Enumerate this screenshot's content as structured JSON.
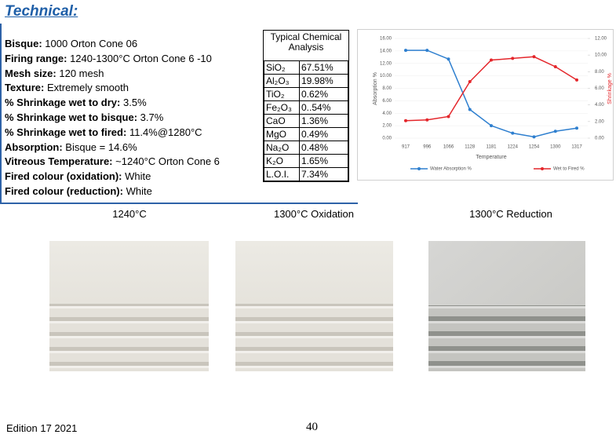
{
  "title": "Technical:",
  "properties": [
    {
      "label": "Bisque:",
      "value": "1000  Orton Cone 06"
    },
    {
      "label": "Firing range:",
      "value": "1240-1300°C Orton Cone 6 -10"
    },
    {
      "label": "Mesh size:",
      "value": "120 mesh"
    },
    {
      "label": "Texture:",
      "value": "Extremely smooth"
    },
    {
      "label": "% Shrinkage wet to dry:",
      "value": "3.5%"
    },
    {
      "label": "% Shrinkage wet to bisque:",
      "value": "3.7%"
    },
    {
      "label": "% Shrinkage wet to fired:",
      "value": "11.4%@1280°C"
    },
    {
      "label": "Absorption:",
      "value": "Bisque = 14.6%"
    },
    {
      "label": "Vitreous Temperature:",
      "value": "~1240°C Orton Cone 6"
    },
    {
      "label": "Fired colour (oxidation):",
      "value": "White"
    },
    {
      "label": "Fired colour (reduction):",
      "value": "White"
    }
  ],
  "table": {
    "header": "Typical Chemical Analysis",
    "rows": [
      [
        "SiO₂",
        "67.51%"
      ],
      [
        "Al₂O₃",
        "19.98%"
      ],
      [
        "TiO₂",
        "0.62%"
      ],
      [
        "Fe₂O₃",
        "0..54%"
      ],
      [
        "CaO",
        "1.36%"
      ],
      [
        "MgO",
        "0.49%"
      ],
      [
        "Na₂O",
        "0.48%"
      ],
      [
        "K₂O",
        "1.65%"
      ],
      [
        "L.O.I.",
        "7.34%"
      ]
    ]
  },
  "chart_data": {
    "type": "line",
    "x_label": "Temperature",
    "y_label": "Absorption %",
    "y2_label": "Shrinkage %",
    "categories": [
      "917",
      "996",
      "1066",
      "1128",
      "1181",
      "1224",
      "1254",
      "1300",
      "1317"
    ],
    "series": [
      {
        "name": "Water Absorption %",
        "color": "#2e7fcf",
        "values": [
          14.1,
          14.1,
          12.7,
          4.6,
          2.0,
          0.8,
          0.2,
          1.1,
          1.6
        ]
      },
      {
        "name": "Wet to Fired %",
        "color": "#e4262b",
        "axis": "y2",
        "values": [
          2.1,
          2.2,
          2.6,
          6.8,
          9.4,
          9.6,
          9.8,
          8.6,
          7.0
        ]
      }
    ],
    "ylim": [
      0,
      16
    ],
    "yticks": [
      {
        "value": 0,
        "label": "0.00"
      },
      {
        "value": 2,
        "label": "2.00"
      },
      {
        "value": 4,
        "label": "4.00"
      },
      {
        "value": 6,
        "label": "6.00"
      },
      {
        "value": 8,
        "label": "8.00"
      },
      {
        "value": 10,
        "label": "10.00"
      },
      {
        "value": 12,
        "label": "12.00"
      },
      {
        "value": 14,
        "label": "14.00"
      },
      {
        "value": 16,
        "label": "16.00"
      }
    ],
    "y2lim": [
      0,
      12
    ],
    "y2ticks": [
      {
        "value": 0,
        "label": "0.00"
      },
      {
        "value": 2,
        "label": "2.00"
      },
      {
        "value": 4,
        "label": "4.00"
      },
      {
        "value": 6,
        "label": "6.00"
      },
      {
        "value": 8,
        "label": "8.00"
      },
      {
        "value": 10,
        "label": "10.00"
      },
      {
        "value": 12,
        "label": "12.00"
      }
    ],
    "grid": true,
    "legend": "bottom"
  },
  "captions": [
    "1240°C",
    "1300°C Oxidation",
    "1300°C Reduction"
  ],
  "footer": {
    "edition": "Edition 17 2021",
    "page": "40"
  }
}
